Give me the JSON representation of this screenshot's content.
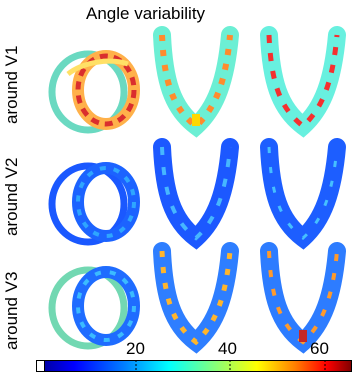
{
  "figure": {
    "title": "Angle variability",
    "row_labels": [
      "around V1",
      "around V2",
      "around V3"
    ],
    "colorbar": {
      "colormap": "jet",
      "tick_labels": [
        "20",
        "40",
        "60"
      ],
      "colors": [
        "#00008f",
        "#0000ff",
        "#0080ff",
        "#00ffff",
        "#80ff80",
        "#ffff00",
        "#ff8000",
        "#ff0000",
        "#800000"
      ]
    },
    "rows": [
      {
        "label": "around V1",
        "level": "high"
      },
      {
        "label": "around V2",
        "level": "low"
      },
      {
        "label": "around V3",
        "level": "medium"
      }
    ]
  }
}
